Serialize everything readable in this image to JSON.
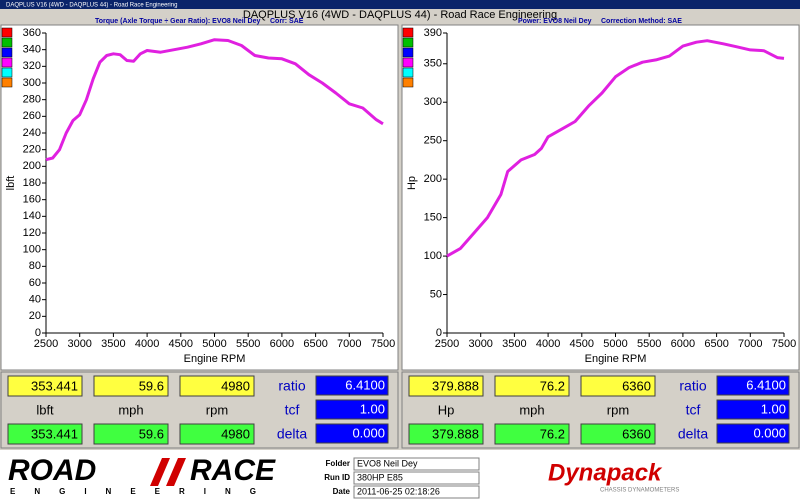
{
  "window_title": "DAQPLUS V16 (4WD - DAQPLUS 44) - Road Race Engineering",
  "header": {
    "title": "DAQPLUS V16 (4WD - DAQPLUS 44) - Road Race Engineering"
  },
  "chart_data": [
    {
      "type": "line",
      "title": "Torque (Axle Torque ÷ Gear Ratio): EVO8 Neil Dey",
      "correction": "Corr: SAE",
      "xlabel": "Engine RPM",
      "ylabel": "lbft",
      "x": [
        2500,
        2600,
        2700,
        2800,
        2900,
        3000,
        3100,
        3200,
        3300,
        3400,
        3500,
        3600,
        3700,
        3800,
        3900,
        4000,
        4200,
        4400,
        4600,
        4800,
        5000,
        5200,
        5400,
        5600,
        5800,
        6000,
        6200,
        6400,
        6600,
        6800,
        7000,
        7200,
        7400,
        7500
      ],
      "series": [
        {
          "color": "#e020e0",
          "values": [
            208,
            210,
            220,
            240,
            255,
            262,
            280,
            305,
            325,
            333,
            335,
            334,
            327,
            326,
            335,
            339,
            337,
            340,
            343,
            347,
            352,
            351,
            345,
            333,
            330,
            329,
            323,
            310,
            300,
            288,
            275,
            270,
            256,
            251
          ]
        }
      ],
      "xlim": [
        2500,
        7500
      ],
      "xticks": [
        2500,
        3000,
        3500,
        4000,
        4500,
        5000,
        5500,
        6000,
        6500,
        7000,
        7500
      ],
      "ylim": [
        0,
        360
      ],
      "yticks": [
        0,
        20,
        40,
        60,
        80,
        100,
        120,
        140,
        160,
        180,
        200,
        220,
        240,
        260,
        280,
        300,
        320,
        340,
        360
      ]
    },
    {
      "type": "line",
      "title": "Power: EVO8 Neil Dey",
      "correction": "Correction Method: SAE",
      "xlabel": "Engine RPM",
      "ylabel": "Hp",
      "x": [
        2500,
        2700,
        2900,
        3100,
        3300,
        3400,
        3600,
        3800,
        3900,
        4000,
        4200,
        4400,
        4600,
        4800,
        5000,
        5200,
        5400,
        5600,
        5800,
        6000,
        6200,
        6360,
        6600,
        6800,
        7000,
        7200,
        7400,
        7500
      ],
      "series": [
        {
          "color": "#e020e0",
          "values": [
            100,
            110,
            130,
            150,
            180,
            210,
            225,
            232,
            240,
            255,
            265,
            275,
            295,
            312,
            333,
            345,
            352,
            355,
            360,
            373,
            378,
            380,
            376,
            372,
            368,
            367,
            358,
            357
          ]
        }
      ],
      "xlim": [
        2500,
        7500
      ],
      "xticks": [
        2500,
        3000,
        3500,
        4000,
        4500,
        5000,
        5500,
        6000,
        6500,
        7000,
        7500
      ],
      "ylim": [
        0,
        390
      ],
      "yticks": [
        0,
        50,
        100,
        150,
        200,
        250,
        300,
        350,
        390
      ]
    }
  ],
  "readouts": [
    {
      "top": [
        "353.441",
        "59.6",
        "4980"
      ],
      "units": [
        "lbft",
        "mph",
        "rpm"
      ],
      "bottom": [
        "353.441",
        "59.6",
        "4980"
      ],
      "labels": [
        "ratio",
        "tcf",
        "delta"
      ],
      "boxes": [
        "6.4100",
        "1.00",
        "0.000"
      ]
    },
    {
      "top": [
        "379.888",
        "76.2",
        "6360"
      ],
      "units": [
        "Hp",
        "mph",
        "rpm"
      ],
      "bottom": [
        "379.888",
        "76.2",
        "6360"
      ],
      "labels": [
        "ratio",
        "tcf",
        "delta"
      ],
      "boxes": [
        "6.4100",
        "1.00",
        "0.000"
      ]
    }
  ],
  "footer": {
    "logo_left": "ROAD",
    "logo_right": "RACE",
    "logo_sub": "ENGINEERING",
    "fields": [
      {
        "label": "Folder",
        "value": "EVO8 Neil Dey"
      },
      {
        "label": "Run ID",
        "value": "380HP E85"
      },
      {
        "label": "Date",
        "value": "2011-06-25 02:18:26"
      }
    ],
    "brand": "Dynapack",
    "brand_sub": "CHASSIS DYNAMOMETERS"
  }
}
